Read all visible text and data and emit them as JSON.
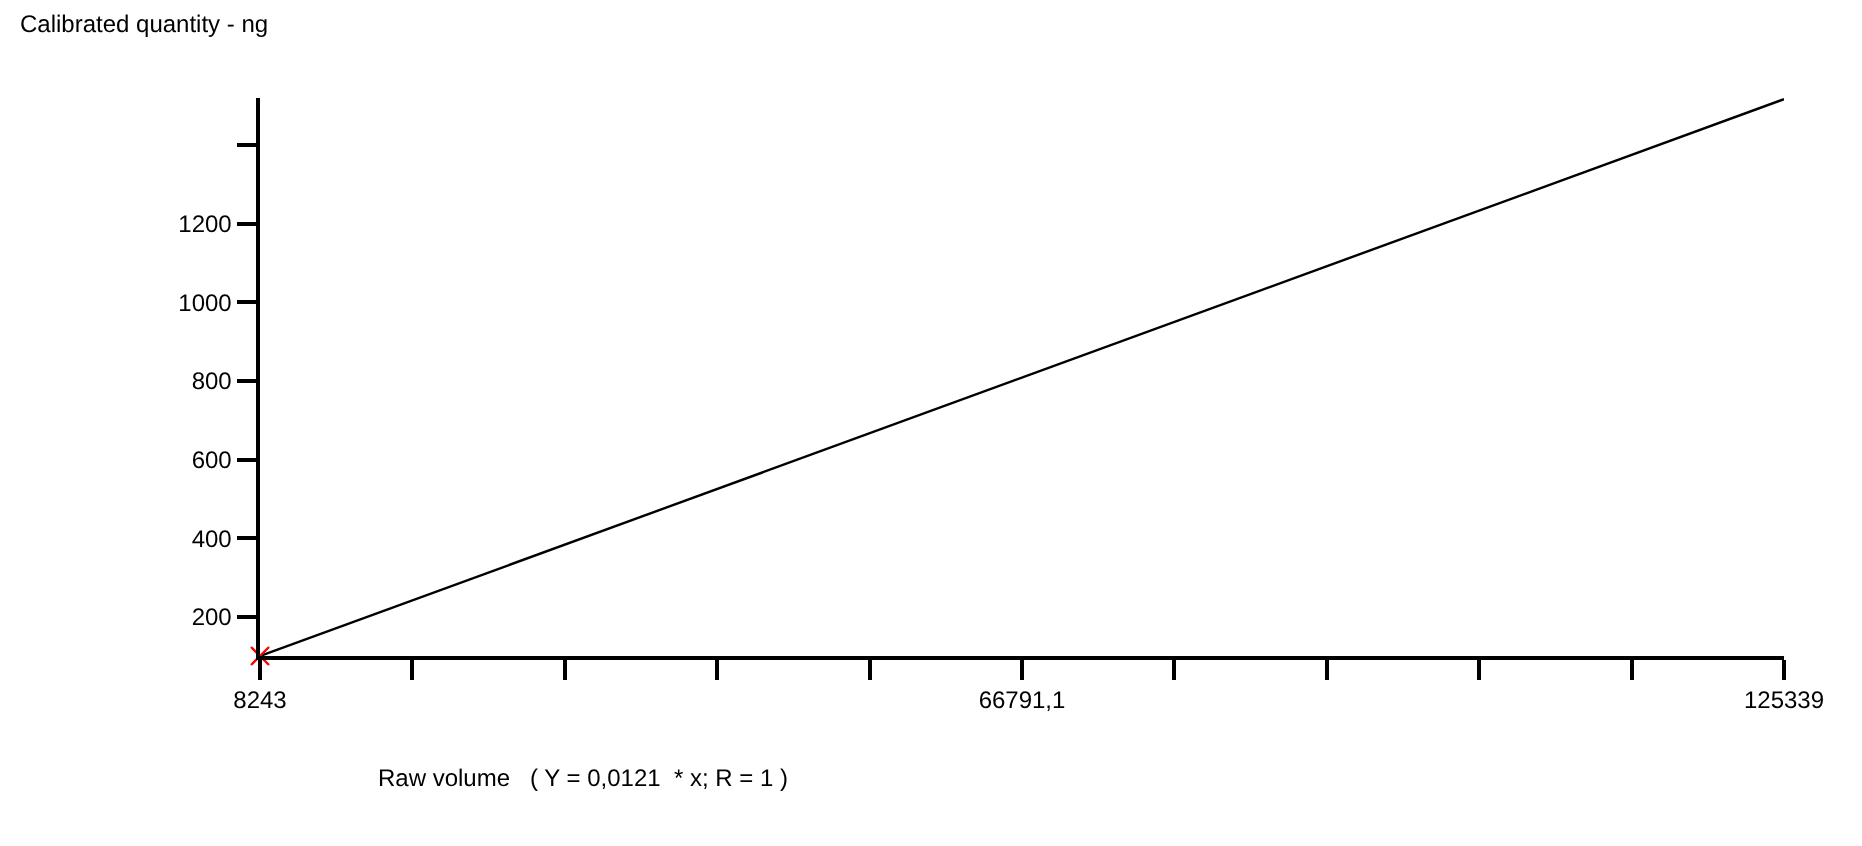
{
  "chart_data": {
    "type": "line",
    "ylabel": "Calibrated quantity - ng",
    "xlabel": "Raw volume   ( Y = 0,0121  * x; R = 1 )",
    "x": [
      8243,
      125339
    ],
    "series": [
      {
        "color": "#000000",
        "values": [
          100,
          1517
        ],
        "marker": "none",
        "line_style": "solid"
      },
      {
        "type": "scatter",
        "color": "#ff0000",
        "x": [
          8243
        ],
        "values": [
          100
        ],
        "marker": "cross"
      }
    ],
    "xlim": [
      8243,
      125339
    ],
    "xticks": [
      8243,
      {
        "value": 19952.6,
        "label": null
      },
      {
        "value": 31662.2,
        "label": null
      },
      {
        "value": 43371.8,
        "label": null
      },
      {
        "value": 55081.4,
        "label": null
      },
      {
        "value": 66791.1,
        "label": "66791,1"
      },
      {
        "value": 78500.7,
        "label": null
      },
      {
        "value": 90210.3,
        "label": null
      },
      {
        "value": 101919.9,
        "label": null
      },
      {
        "value": 113629.5,
        "label": null
      },
      125339
    ],
    "ylim": [
      100,
      1520
    ],
    "yticks": [
      200,
      400,
      600,
      800,
      1000,
      1200,
      {
        "value": 1400,
        "label": null
      }
    ],
    "grid": false
  }
}
